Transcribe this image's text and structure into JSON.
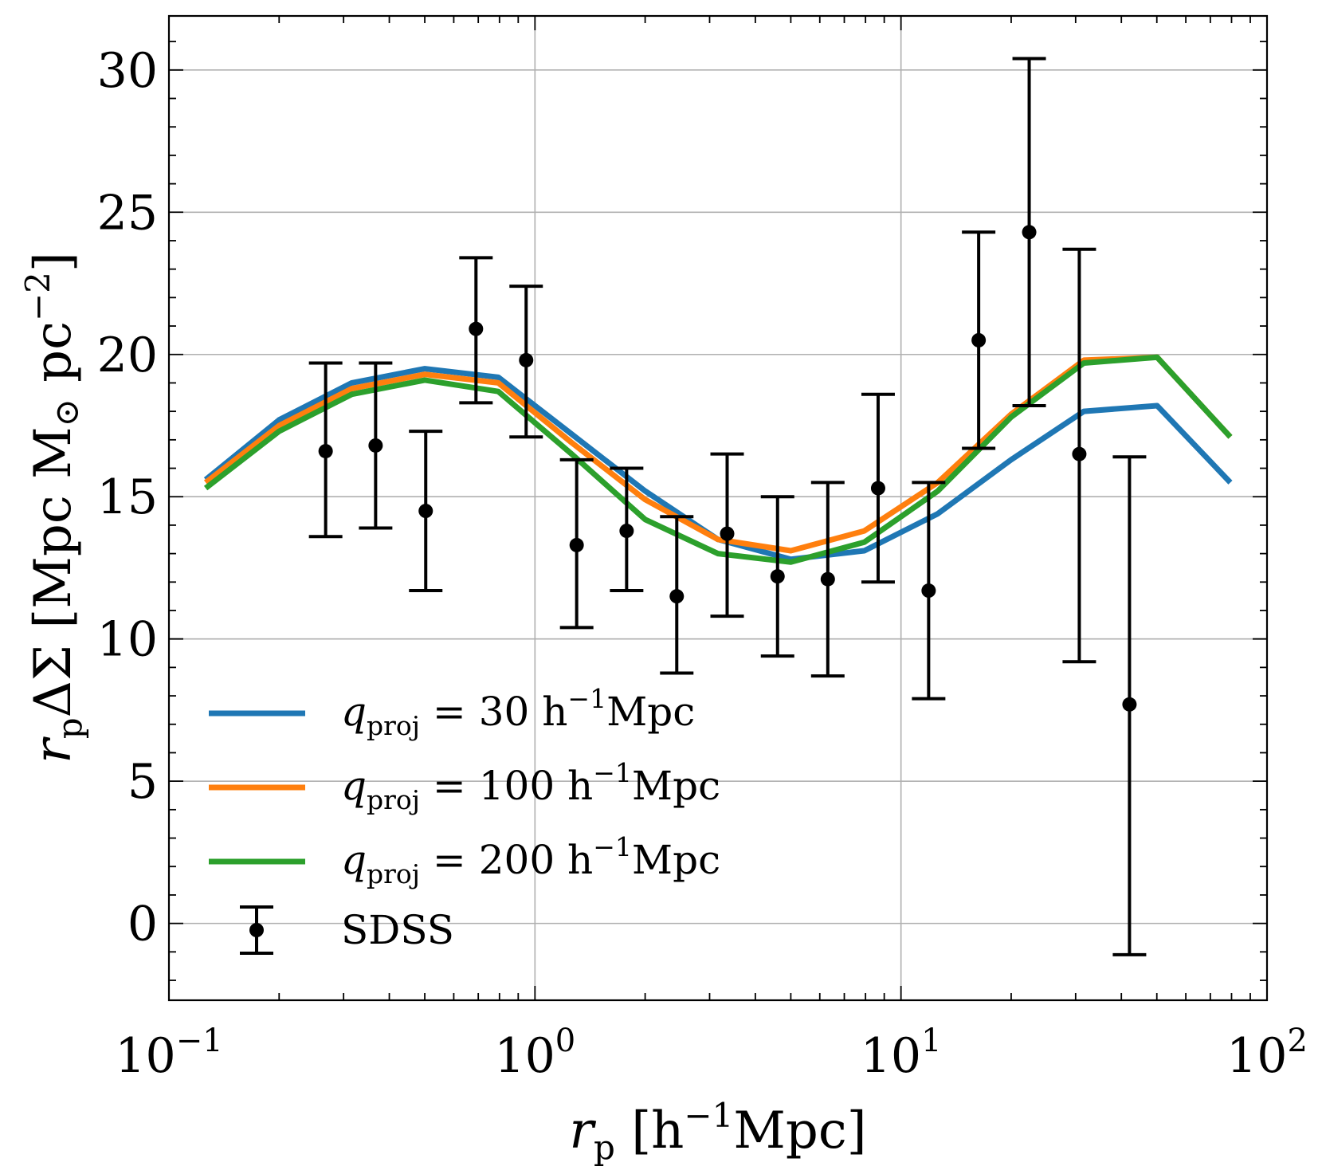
{
  "chart_data": {
    "type": "line",
    "x_scale": "log",
    "xlim": [
      0.1,
      100
    ],
    "ylim": [
      -2.7,
      31.9
    ],
    "grid": true,
    "legend_position": "lower-left",
    "xlabel": {
      "main": "r",
      "sub": "p",
      "rest": " [h",
      "sup": "−1",
      "unit": "Mpc]"
    },
    "ylabel": {
      "main": "r",
      "sub": "p",
      "rest": "ΔΣ [Mpc M",
      "odot": "⊙",
      "unit": " pc",
      "sup": "−2",
      "close": "]"
    },
    "x_ticks": [
      {
        "value": 0.1,
        "base": "10",
        "exp": "−1"
      },
      {
        "value": 1,
        "base": "10",
        "exp": "0"
      },
      {
        "value": 10,
        "base": "10",
        "exp": "1"
      },
      {
        "value": 100,
        "base": "10",
        "exp": "2"
      }
    ],
    "y_ticks": [
      0,
      5,
      10,
      15,
      20,
      25,
      30
    ],
    "series": [
      {
        "name": "q_proj = 30 h^-1 Mpc",
        "label_pre": "q",
        "label_sub": "proj",
        "label_eq": " = 30 h",
        "label_sup": "−1",
        "label_unit": "Mpc",
        "color": "#1f77b4",
        "x": [
          0.126,
          0.2,
          0.316,
          0.5,
          0.794,
          1.26,
          2.0,
          3.16,
          5.0,
          7.94,
          12.6,
          20.0,
          31.6,
          50.1,
          79.4
        ],
        "y": [
          15.6,
          17.7,
          19.0,
          19.5,
          19.2,
          17.2,
          15.2,
          13.5,
          12.8,
          13.1,
          14.4,
          16.3,
          18.0,
          18.2,
          15.5
        ]
      },
      {
        "name": "q_proj = 100 h^-1 Mpc",
        "label_pre": "q",
        "label_sub": "proj",
        "label_eq": " = 100 h",
        "label_sup": "−1",
        "label_unit": "Mpc",
        "color": "#ff7f0e",
        "x": [
          0.126,
          0.2,
          0.316,
          0.5,
          0.794,
          1.26,
          2.0,
          3.16,
          5.0,
          7.94,
          12.6,
          20.0,
          31.6,
          50.1,
          79.4
        ],
        "y": [
          15.5,
          17.5,
          18.8,
          19.3,
          19.0,
          16.9,
          14.9,
          13.5,
          13.1,
          13.8,
          15.5,
          17.9,
          19.8,
          19.9,
          17.1
        ]
      },
      {
        "name": "q_proj = 200 h^-1 Mpc",
        "label_pre": "q",
        "label_sub": "proj",
        "label_eq": " = 200 h",
        "label_sup": "−1",
        "label_unit": "Mpc",
        "color": "#2ca02c",
        "x": [
          0.126,
          0.2,
          0.316,
          0.5,
          0.794,
          1.26,
          2.0,
          3.16,
          5.0,
          7.94,
          12.6,
          20.0,
          31.6,
          50.1,
          79.4
        ],
        "y": [
          15.3,
          17.3,
          18.6,
          19.1,
          18.7,
          16.5,
          14.2,
          13.0,
          12.7,
          13.4,
          15.2,
          17.8,
          19.7,
          19.9,
          17.1
        ]
      }
    ],
    "errorbar_series": {
      "name": "SDSS",
      "color": "#000000",
      "points": [
        {
          "x": 0.268,
          "y": 16.6,
          "lo": 13.6,
          "hi": 19.7
        },
        {
          "x": 0.367,
          "y": 16.8,
          "lo": 13.9,
          "hi": 19.7
        },
        {
          "x": 0.503,
          "y": 14.5,
          "lo": 11.7,
          "hi": 17.3
        },
        {
          "x": 0.69,
          "y": 20.9,
          "lo": 18.3,
          "hi": 23.4
        },
        {
          "x": 0.946,
          "y": 19.8,
          "lo": 17.1,
          "hi": 22.4
        },
        {
          "x": 1.3,
          "y": 13.3,
          "lo": 10.4,
          "hi": 16.3
        },
        {
          "x": 1.78,
          "y": 13.8,
          "lo": 11.7,
          "hi": 16.0
        },
        {
          "x": 2.44,
          "y": 11.5,
          "lo": 8.8,
          "hi": 14.3
        },
        {
          "x": 3.35,
          "y": 13.7,
          "lo": 10.8,
          "hi": 16.5
        },
        {
          "x": 4.6,
          "y": 12.2,
          "lo": 9.4,
          "hi": 15.0
        },
        {
          "x": 6.31,
          "y": 12.1,
          "lo": 8.7,
          "hi": 15.5
        },
        {
          "x": 8.66,
          "y": 15.3,
          "lo": 12.0,
          "hi": 18.6
        },
        {
          "x": 11.9,
          "y": 11.7,
          "lo": 7.9,
          "hi": 15.5
        },
        {
          "x": 16.3,
          "y": 20.5,
          "lo": 16.7,
          "hi": 24.3
        },
        {
          "x": 22.4,
          "y": 24.3,
          "lo": 18.2,
          "hi": 30.4
        },
        {
          "x": 30.7,
          "y": 16.5,
          "lo": 9.2,
          "hi": 23.7
        },
        {
          "x": 42.1,
          "y": 7.7,
          "lo": -1.1,
          "hi": 16.4
        }
      ]
    }
  }
}
